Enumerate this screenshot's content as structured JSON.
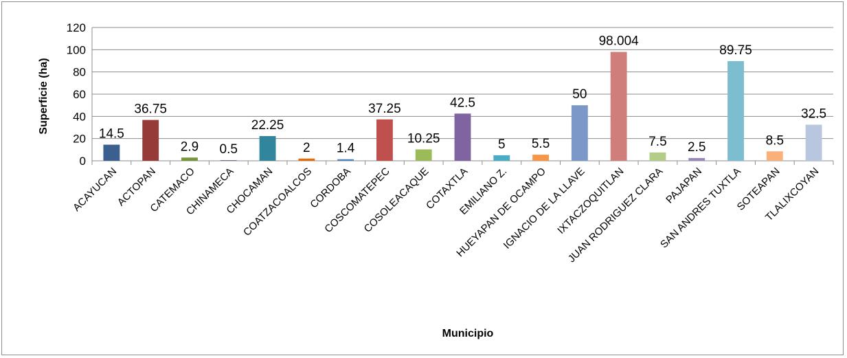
{
  "chart_data": {
    "type": "bar",
    "xlabel": "Municipio",
    "ylabel": "Superficie (ha)",
    "ylim": [
      0,
      120
    ],
    "yticks": [
      0,
      20,
      40,
      60,
      80,
      100,
      120
    ],
    "grid": true,
    "legend": "none",
    "categories": [
      "ACAYUCAN",
      "ACTOPAN",
      "CATEMACO",
      "CHINAMECA",
      "CHOCAMAN",
      "COATZACOALCOS",
      "CORDOBA",
      "COSCOMATEPEC",
      "COSOLEACAQUE",
      "COTAXTLA",
      "EMILIANO Z.",
      "HUEYAPAN DE OCAMPO",
      "IGNACIO DE LA LLAVE",
      "IXTACZOQUITLAN",
      "JUAN RODRIGUEZ CLARA",
      "PAJAPAN",
      "SAN ANDRES TUXTLA",
      "SOTEAPAN",
      "TLALIXCOYAN"
    ],
    "values": [
      14.5,
      36.75,
      2.9,
      0.5,
      22.25,
      2,
      1.4,
      37.25,
      10.25,
      42.5,
      5,
      5.5,
      50,
      98.004,
      7.5,
      2.5,
      89.75,
      8.5,
      32.5
    ],
    "data_labels": [
      "14.5",
      "36.75",
      "2.9",
      "0.5",
      "22.25",
      "2",
      "1.4",
      "37.25",
      "10.25",
      "42.5",
      "5",
      "5.5",
      "50",
      "98.004",
      "7.5",
      "2.5",
      "89.75",
      "8.5",
      "32.5"
    ],
    "colors": [
      "#3b5f8e",
      "#963b38",
      "#77933c",
      "#5f4a7c",
      "#31859c",
      "#e46c0a",
      "#4f81bd",
      "#c0504d",
      "#9bbb59",
      "#8064a2",
      "#4bacc6",
      "#f79646",
      "#7b98c8",
      "#d07e7b",
      "#b3cc88",
      "#9987b5",
      "#7cbdd0",
      "#f9b07b",
      "#b9c6e0"
    ]
  }
}
